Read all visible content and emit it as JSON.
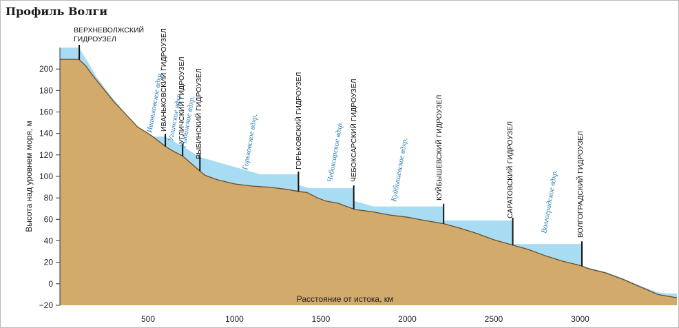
{
  "page_title": "Профиль Волги",
  "colors": {
    "terrain": "#d1aa6c",
    "water": "#a7dcf2",
    "outline": "#6a4a2a",
    "dam": "#111111",
    "reservoir_label": "#2c7fb8",
    "frame": "#b9b9b9"
  },
  "chart_data": {
    "type": "area",
    "title": "Профиль Волги",
    "xlabel": "Расстояние от истока, км",
    "ylabel": "Высота над уровнем моря, м",
    "xlim": [
      -10,
      3560
    ],
    "ylim": [
      -20,
      220
    ],
    "x_ticks": [
      500,
      1000,
      1500,
      2000,
      2500,
      3000
    ],
    "x_tick_labels": [
      "500",
      "1000",
      "1500",
      "2000",
      "2500",
      "3000"
    ],
    "y_ticks": [
      -20,
      0,
      20,
      40,
      60,
      80,
      100,
      120,
      140,
      160,
      180,
      200
    ],
    "y_tick_labels": [
      "−20",
      "0",
      "20",
      "40",
      "60",
      "80",
      "100",
      "120",
      "140",
      "160",
      "180",
      "200"
    ],
    "grid": false,
    "riverbed": {
      "x": [
        -10,
        100,
        140,
        180,
        240,
        300,
        370,
        440,
        520,
        600,
        640,
        700,
        750,
        800,
        830,
        900,
        1000,
        1100,
        1200,
        1300,
        1370,
        1420,
        1480,
        1530,
        1600,
        1700,
        1800,
        1900,
        2000,
        2100,
        2210,
        2300,
        2400,
        2500,
        2610,
        2700,
        2800,
        2900,
        3000,
        3050,
        3150,
        3250,
        3350,
        3450,
        3560
      ],
      "y": [
        209,
        209,
        203,
        194,
        182,
        170,
        158,
        146,
        138,
        128,
        124,
        119,
        112,
        105,
        101,
        97,
        93,
        91,
        90,
        88,
        86,
        85,
        80,
        77,
        75,
        69,
        67,
        64,
        62,
        59,
        56,
        52,
        47,
        41,
        36,
        32,
        26,
        21,
        17,
        14,
        10,
        4,
        -3,
        -10,
        -13
      ]
    },
    "water_surface": {
      "x": [
        -10,
        100,
        150,
        200,
        260,
        330,
        400,
        470,
        530,
        600,
        700,
        800,
        3050,
        3150,
        3250,
        3350,
        3450,
        3500,
        3560
      ],
      "y": [
        220,
        220,
        207,
        193,
        180,
        166,
        152,
        141,
        137,
        137,
        128,
        118,
        15,
        11,
        5,
        -2,
        -8,
        -9,
        -9
      ]
    },
    "dams": [
      {
        "name": "Верхневолжский гидроузел",
        "x": 102,
        "upper_level": 220
      },
      {
        "name": "Иваньковский гидроузел",
        "x": 600,
        "upper_level": 137
      },
      {
        "name": "Угличский гидроузел",
        "x": 700,
        "upper_level": 128
      },
      {
        "name": "Рыбинский гидроузел",
        "x": 800,
        "upper_level": 118
      },
      {
        "name": "Горьковский гидроузел",
        "x": 1370,
        "upper_level": 102
      },
      {
        "name": "Чебоксарский гидроузел",
        "x": 1690,
        "upper_level": 89
      },
      {
        "name": "Куйбышевский гидроузел",
        "x": 2210,
        "upper_level": 72
      },
      {
        "name": "Саратовский гидроузел",
        "x": 2610,
        "upper_level": 59
      },
      {
        "name": "Волгоградский гидроузел",
        "x": 3010,
        "upper_level": 37
      }
    ],
    "dam_labels": {
      "verkhnevolzhsky_line1": "ВЕРХНЕВОЛЖСКИЙ",
      "verkhnevolzhsky_line2": "ГИДРОУЗЕЛ",
      "ivankovsky": "ИВАНЬКОВСКИЙ ГИДРОУЗЕЛ",
      "uglichsky": "УГЛИЧСКИЙ ГИДРОУЗЕЛ",
      "rybinsky": "РЫБИНСКИЙ ГИДРОУЗЕЛ",
      "gorkovsky": "ГОРЬКОВСКИЙ ГИДРОУЗЕЛ",
      "cheboksarsky": "ЧЕБОКСАРСКИЙ ГИДРОУЗЕЛ",
      "kuibyshevsky": "КУЙБЫШЕВСКИЙ ГИДРОУЗЕЛ",
      "saratovsky": "САРАТОВСКИЙ ГИДРОУЗЕЛ",
      "volgogradsky": "ВОЛГОГРАДСКИЙ ГИДРОУЗЕЛ"
    },
    "reservoir_labels": {
      "ivankovskoe": "Иваньковское вдхр.",
      "uglichskoe": "Угличское вдхр.",
      "rybinskoe": "Рыбинское вдхр.",
      "gorkovskoe": "Горьковское вдхр.",
      "cheboksarskoe": "Чебоксарское вдхр.",
      "kuibyshevskoe": "Куйбышевское вдхр.",
      "volgogradskoe": "Волгоградское вдхр."
    }
  }
}
